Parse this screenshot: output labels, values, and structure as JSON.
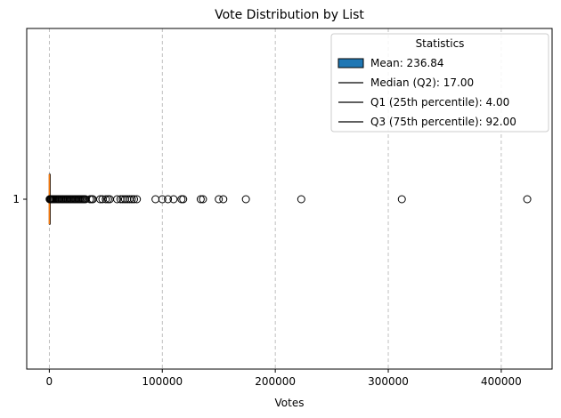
{
  "chart_data": {
    "type": "boxplot",
    "orientation": "horizontal",
    "title": "Vote Distribution by List",
    "xlabel": "Votes",
    "ylabel": "",
    "xlim": [
      -20000,
      445000
    ],
    "x_ticks": [
      0,
      100000,
      200000,
      300000,
      400000
    ],
    "x_tick_labels": [
      "0",
      "100000",
      "200000",
      "300000",
      "400000"
    ],
    "y_tick_labels": [
      "1"
    ],
    "grid": "x, dashed",
    "box": {
      "q1": 4.0,
      "median": 17.0,
      "q3": 92.0,
      "whisker_low": 0,
      "whisker_high": 224
    },
    "outliers": [
      300,
      500,
      800,
      1200,
      1800,
      2500,
      3200,
      4000,
      5000,
      6000,
      7000,
      8000,
      9000,
      10000,
      11000,
      12000,
      13000,
      14000,
      15000,
      16000,
      17000,
      18000,
      19000,
      20000,
      21000,
      22000,
      23000,
      24000,
      25000,
      26000,
      27000,
      28000,
      29000,
      30000,
      31000,
      32000,
      36000,
      37500,
      38500,
      45000,
      47000,
      50000,
      52000,
      53500,
      60000,
      63000,
      65000,
      67000,
      69000,
      71000,
      73000,
      75000,
      77500,
      94000,
      100000,
      105000,
      110000,
      117000,
      118500,
      134000,
      136000,
      150000,
      154000,
      174000,
      223000,
      312000,
      423000
    ],
    "legend": {
      "title": "Statistics",
      "position": "top-right",
      "entries": [
        {
          "label": "Mean: 236.84",
          "kind": "patch",
          "color": "#1f77b4"
        },
        {
          "label": "Median (Q2): 17.00",
          "kind": "line",
          "color": "#000000"
        },
        {
          "label": "Q1 (25th percentile): 4.00",
          "kind": "line",
          "color": "#000000"
        },
        {
          "label": "Q3 (75th percentile): 92.00",
          "kind": "line",
          "color": "#000000"
        }
      ]
    },
    "colors": {
      "median_line": "#ff7f0e",
      "box_edge": "#000000",
      "outlier_edge": "#000000",
      "grid": "#b0b0b0",
      "mean_patch": "#1f77b4"
    }
  }
}
